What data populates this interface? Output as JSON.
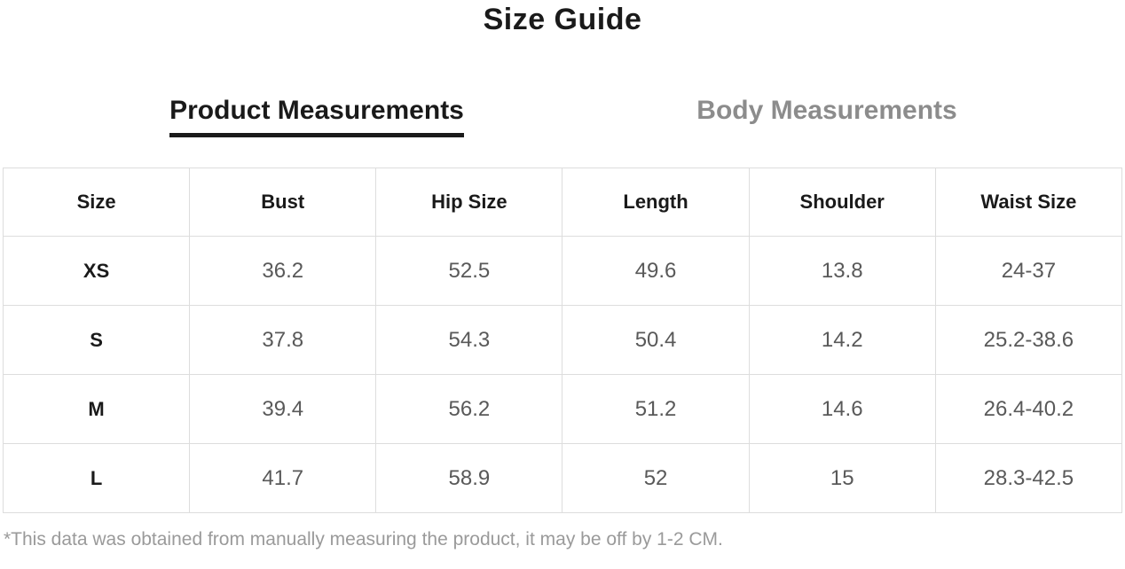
{
  "page": {
    "title": "Size Guide"
  },
  "tabs": {
    "product": {
      "label": "Product Measurements",
      "active": true
    },
    "body": {
      "label": "Body Measurements",
      "active": false
    }
  },
  "table": {
    "columns": [
      "Size",
      "Bust",
      "Hip Size",
      "Length",
      "Shoulder",
      "Waist Size"
    ],
    "rows": [
      {
        "size": "XS",
        "bust": "36.2",
        "hip": "52.5",
        "length": "49.6",
        "shoulder": "13.8",
        "waist": "24-37"
      },
      {
        "size": "S",
        "bust": "37.8",
        "hip": "54.3",
        "length": "50.4",
        "shoulder": "14.2",
        "waist": "25.2-38.6"
      },
      {
        "size": "M",
        "bust": "39.4",
        "hip": "56.2",
        "length": "51.2",
        "shoulder": "14.6",
        "waist": "26.4-40.2"
      },
      {
        "size": "L",
        "bust": "41.7",
        "hip": "58.9",
        "length": "52",
        "shoulder": "15",
        "waist": "28.3-42.5"
      }
    ]
  },
  "footnote": "*This data was obtained from manually measuring the product, it may be off by 1-2 CM.",
  "colors": {
    "active_tab": "#1a1a1a",
    "inactive_tab": "#8c8c8c",
    "cell_text": "#595959",
    "border": "#dddddd",
    "footnote_text": "#9a9a9a"
  }
}
